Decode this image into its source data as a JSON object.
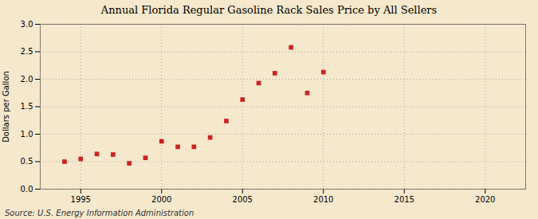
{
  "chart_data": {
    "type": "scatter",
    "title": "Annual Florida Regular Gasoline Rack Sales Price by All Sellers",
    "ylabel": "Dollars per Gallon",
    "source": "Source: U.S. Energy Information Administration",
    "x": [
      1994,
      1995,
      1996,
      1997,
      1998,
      1999,
      2000,
      2001,
      2002,
      2003,
      2004,
      2005,
      2006,
      2007,
      2008,
      2009,
      2010
    ],
    "values": [
      0.5,
      0.55,
      0.64,
      0.63,
      0.47,
      0.57,
      0.87,
      0.77,
      0.77,
      0.94,
      1.24,
      1.63,
      1.93,
      2.11,
      2.58,
      1.75,
      2.13
    ],
    "color": "#cc2222",
    "marker": "square",
    "xlim": [
      1992.5,
      2022.5
    ],
    "xticks": [
      1995,
      2000,
      2005,
      2010,
      2015,
      2020
    ],
    "ylim": [
      0.0,
      3.0
    ],
    "yticks": [
      {
        "value": 0.0,
        "label": "0.0"
      },
      0.5,
      {
        "value": 1.0,
        "label": "1.0"
      },
      1.5,
      {
        "value": 2.0,
        "label": "2.0"
      },
      2.5,
      {
        "value": 3.0,
        "label": "3.0"
      }
    ],
    "grid": true
  }
}
